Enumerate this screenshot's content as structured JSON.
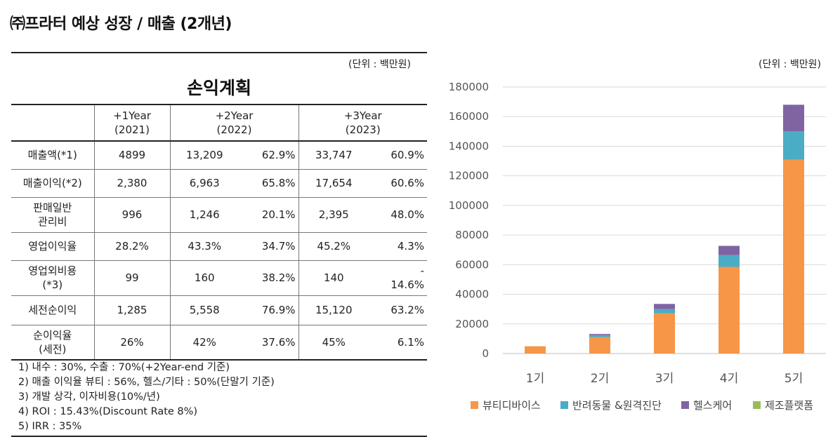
{
  "page_title": "㈜프라터 예상 성장 / 매출 (2개년)",
  "table": {
    "unit": "(단위 : 백만원)",
    "title": "손익계획",
    "headers": [
      "",
      "+1Year\n(2021)",
      "+2Year\n(2022)",
      "+3Year\n(2023)"
    ],
    "rows": [
      {
        "label": "매출액(*1)",
        "y1": "4899",
        "y2": "13,209",
        "y2_pct": "62.9%",
        "y3": "33,747",
        "y3_pct": "60.9%"
      },
      {
        "label": "매출이익(*2)",
        "y1": "2,380",
        "y2": "6,963",
        "y2_pct": "65.8%",
        "y3": "17,654",
        "y3_pct": "60.6%"
      },
      {
        "label": "판매일반\n관리비",
        "y1": "996",
        "y2": "1,246",
        "y2_pct": "20.1%",
        "y3": "2,395",
        "y3_pct": "48.0%"
      },
      {
        "label": "영업이익율",
        "y1": "28.2%",
        "y2": "43.3%",
        "y2_pct": "34.7%",
        "y3": "45.2%",
        "y3_pct": "4.3%"
      },
      {
        "label": "영업외비용\n(*3)",
        "y1": "99",
        "y2": "160",
        "y2_pct": "38.2%",
        "y3": "140",
        "y3_pct": "-\n14.6%"
      },
      {
        "label": "세전순이익",
        "y1": "1,285",
        "y2": "5,558",
        "y2_pct": "76.9%",
        "y3": "15,120",
        "y3_pct": "63.2%"
      },
      {
        "label": "순이익율\n(세전)",
        "y1": "26%",
        "y2": "42%",
        "y2_pct": "37.6%",
        "y3": "45%",
        "y3_pct": "6.1%"
      }
    ],
    "notes": [
      "1) 내수 : 30%, 수출 : 70%(+2Year-end 기준)",
      "2) 매출 이익율 뷰티 : 56%, 헬스/기타 : 50%(단말기 기준)",
      "3) 개발 상각, 이자비용(10%/년)",
      "4) ROI : 15.43%(Discount Rate 8%)",
      "5) IRR : 35%"
    ]
  },
  "chart_unit": "(단위 : 백만원)",
  "chart_data": {
    "type": "bar",
    "stacked": true,
    "title": "",
    "xlabel": "",
    "ylabel": "",
    "categories": [
      "1기",
      "2기",
      "3기",
      "4기",
      "5기"
    ],
    "ylim": [
      0,
      180000
    ],
    "yticks": [
      0,
      20000,
      40000,
      60000,
      80000,
      100000,
      120000,
      140000,
      160000,
      180000
    ],
    "gridlines": true,
    "legend_position": "bottom",
    "series": [
      {
        "name": "뷰티디바이스",
        "color": "#f79646",
        "values": [
          4899,
          11100,
          27200,
          58500,
          131000
        ]
      },
      {
        "name": "반려동물 &원격진단",
        "color": "#4bacc6",
        "values": [
          0,
          1300,
          2800,
          8000,
          19000
        ]
      },
      {
        "name": "헬스케어",
        "color": "#8064a2",
        "values": [
          0,
          800,
          3500,
          6200,
          18000
        ]
      },
      {
        "name": "제조플랫폼",
        "color": "#9bbb59",
        "values": [
          0,
          0,
          0,
          0,
          0
        ]
      }
    ]
  }
}
